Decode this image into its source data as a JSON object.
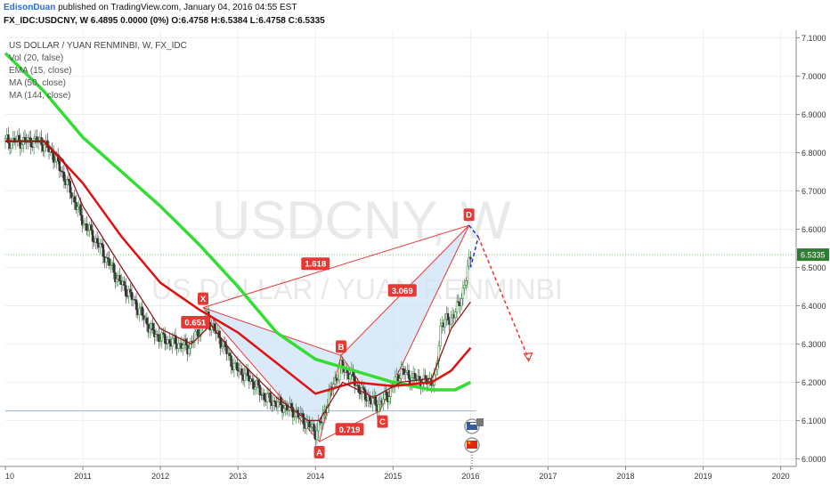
{
  "header": {
    "author": "EdisonDuan",
    "published_text": "published on TradingView.com, January 04, 2016 04:55 EST",
    "symbol_line": "FX_IDC:USDCNY, W  6.4895 0.0000 (0%) O:6.4758 H:6.5384 L:6.4758 C:6.5335"
  },
  "legend": {
    "title": "US DOLLAR / YUAN RENMINBI, W, FX_IDC",
    "indicators": [
      "Vol (20, false)",
      "EMA (15, close)",
      "MA (50, close)",
      "MA (144, close)"
    ]
  },
  "watermark": {
    "symbol": "USDCNY, W",
    "name": "US DOLLAR / YUAN RENMINBI"
  },
  "colors": {
    "ma144": "#33dd33",
    "ma50": "#dd1111",
    "ema15": "#8b1a1a",
    "pattern_fill": "#cfe3f5",
    "pattern_line": "#e53935",
    "candle_up": "#2e7d32",
    "candle_down": "#333333",
    "price_label_bg": "#2e7d32",
    "projection_blue": "#1a33cc"
  },
  "chart_data": {
    "type": "candlestick",
    "title": "US DOLLAR / YUAN RENMINBI, W, FX_IDC",
    "ylim": [
      5.98,
      7.12
    ],
    "xlim": [
      2010.0,
      2020.2
    ],
    "y_ticks": [
      "7.1000",
      "7.0000",
      "6.9000",
      "6.8000",
      "6.7000",
      "6.6000",
      "6.5000",
      "6.4000",
      "6.3000",
      "6.2000",
      "6.1000",
      "6.0000"
    ],
    "y_tick_values": [
      7.1,
      7.0,
      6.9,
      6.8,
      6.7,
      6.6,
      6.5,
      6.4,
      6.3,
      6.2,
      6.1,
      6.0
    ],
    "x_ticks": [
      "10",
      "2011",
      "2012",
      "2013",
      "2014",
      "2015",
      "2016",
      "2017",
      "2018",
      "2019",
      "2020"
    ],
    "x_tick_values": [
      2010.0,
      2011.0,
      2012.0,
      2013.0,
      2014.0,
      2015.0,
      2016.0,
      2017.0,
      2018.0,
      2019.0,
      2020.0
    ],
    "last_price": "6.5335",
    "last_price_value": 6.5335,
    "support_level": 6.125,
    "price_path": [
      [
        2010.0,
        6.83
      ],
      [
        2010.45,
        6.83
      ],
      [
        2010.6,
        6.8
      ],
      [
        2010.75,
        6.74
      ],
      [
        2010.9,
        6.67
      ],
      [
        2011.0,
        6.62
      ],
      [
        2011.2,
        6.56
      ],
      [
        2011.45,
        6.47
      ],
      [
        2011.6,
        6.43
      ],
      [
        2011.75,
        6.38
      ],
      [
        2011.9,
        6.33
      ],
      [
        2012.05,
        6.31
      ],
      [
        2012.25,
        6.3
      ],
      [
        2012.35,
        6.29
      ],
      [
        2012.45,
        6.32
      ],
      [
        2012.6,
        6.37
      ],
      [
        2012.8,
        6.3
      ],
      [
        2012.95,
        6.24
      ],
      [
        2013.15,
        6.21
      ],
      [
        2013.35,
        6.16
      ],
      [
        2013.55,
        6.14
      ],
      [
        2013.75,
        6.12
      ],
      [
        2013.9,
        6.09
      ],
      [
        2014.0,
        6.07
      ],
      [
        2014.08,
        6.1
      ],
      [
        2014.2,
        6.18
      ],
      [
        2014.33,
        6.24
      ],
      [
        2014.45,
        6.22
      ],
      [
        2014.6,
        6.17
      ],
      [
        2014.8,
        6.14
      ],
      [
        2014.95,
        6.17
      ],
      [
        2015.1,
        6.23
      ],
      [
        2015.25,
        6.21
      ],
      [
        2015.45,
        6.2
      ],
      [
        2015.55,
        6.21
      ],
      [
        2015.62,
        6.36
      ],
      [
        2015.72,
        6.36
      ],
      [
        2015.85,
        6.4
      ],
      [
        2015.95,
        6.48
      ],
      [
        2016.0,
        6.53
      ]
    ],
    "ema15": [
      [
        2010.0,
        6.83
      ],
      [
        2010.5,
        6.83
      ],
      [
        2010.75,
        6.78
      ],
      [
        2011.0,
        6.66
      ],
      [
        2011.5,
        6.5
      ],
      [
        2012.0,
        6.34
      ],
      [
        2012.4,
        6.3
      ],
      [
        2012.65,
        6.35
      ],
      [
        2013.0,
        6.26
      ],
      [
        2013.5,
        6.16
      ],
      [
        2013.9,
        6.1
      ],
      [
        2014.05,
        6.1
      ],
      [
        2014.35,
        6.2
      ],
      [
        2014.75,
        6.16
      ],
      [
        2015.1,
        6.2
      ],
      [
        2015.5,
        6.21
      ],
      [
        2015.75,
        6.34
      ],
      [
        2016.0,
        6.41
      ]
    ],
    "ma50": [
      [
        2010.0,
        6.83
      ],
      [
        2010.5,
        6.83
      ],
      [
        2011.0,
        6.72
      ],
      [
        2011.5,
        6.58
      ],
      [
        2012.0,
        6.46
      ],
      [
        2012.5,
        6.39
      ],
      [
        2013.0,
        6.33
      ],
      [
        2013.5,
        6.25
      ],
      [
        2014.0,
        6.17
      ],
      [
        2014.5,
        6.2
      ],
      [
        2015.0,
        6.19
      ],
      [
        2015.5,
        6.2
      ],
      [
        2015.75,
        6.23
      ],
      [
        2016.0,
        6.29
      ]
    ],
    "ma144": [
      [
        2010.0,
        7.06
      ],
      [
        2010.5,
        6.96
      ],
      [
        2011.0,
        6.84
      ],
      [
        2011.5,
        6.75
      ],
      [
        2012.0,
        6.66
      ],
      [
        2012.5,
        6.56
      ],
      [
        2013.0,
        6.45
      ],
      [
        2013.5,
        6.33
      ],
      [
        2014.0,
        6.26
      ],
      [
        2014.5,
        6.23
      ],
      [
        2015.0,
        6.2
      ],
      [
        2015.5,
        6.18
      ],
      [
        2015.8,
        6.18
      ],
      [
        2016.0,
        6.2
      ]
    ],
    "harmonic_pattern": {
      "points": [
        {
          "label": "X",
          "x": 2012.55,
          "y": 6.395
        },
        {
          "label": "A",
          "x": 2014.05,
          "y": 6.045
        },
        {
          "label": "B",
          "x": 2014.33,
          "y": 6.27
        },
        {
          "label": "C",
          "x": 2014.83,
          "y": 6.125
        },
        {
          "label": "D",
          "x": 2015.98,
          "y": 6.61
        }
      ],
      "ratios": [
        {
          "label": "1.618",
          "x": 2014.0,
          "y": 6.51
        },
        {
          "label": "0.651",
          "x": 2012.45,
          "y": 6.357
        },
        {
          "label": "3.069",
          "x": 2015.12,
          "y": 6.44
        },
        {
          "label": "0.719",
          "x": 2014.44,
          "y": 6.077
        }
      ]
    },
    "projection": {
      "blue": [
        [
          2015.98,
          6.61
        ],
        [
          2016.1,
          6.58
        ],
        [
          2016.0,
          6.5
        ]
      ],
      "red": [
        [
          2016.1,
          6.58
        ],
        [
          2016.75,
          6.26
        ]
      ]
    }
  }
}
